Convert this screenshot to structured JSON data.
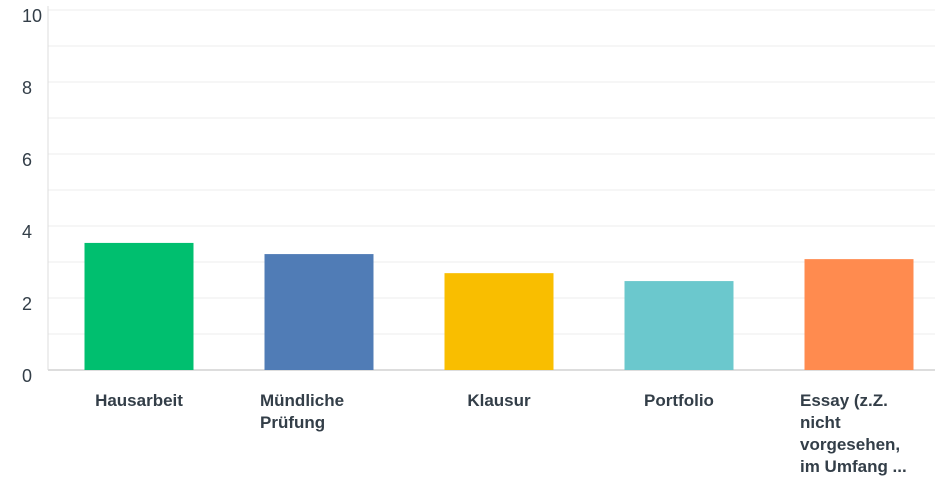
{
  "chart_data": {
    "type": "bar",
    "categories": [
      "Hausarbeit",
      "Mündliche Prüfung",
      "Klausur",
      "Portfolio",
      "Essay (z.Z. nicht vorgesehen, im Umfang ..."
    ],
    "values": [
      3.53,
      3.22,
      2.69,
      2.47,
      3.08
    ],
    "colors": [
      "#00bf6f",
      "#507cb6",
      "#f9be00",
      "#6bc8cd",
      "#ff8b4f"
    ],
    "ylim": [
      0,
      10
    ],
    "yticks": [
      0,
      2,
      4,
      6,
      8,
      10
    ],
    "minor_yticks": [
      1,
      3,
      5,
      7,
      9
    ],
    "grid": true
  }
}
